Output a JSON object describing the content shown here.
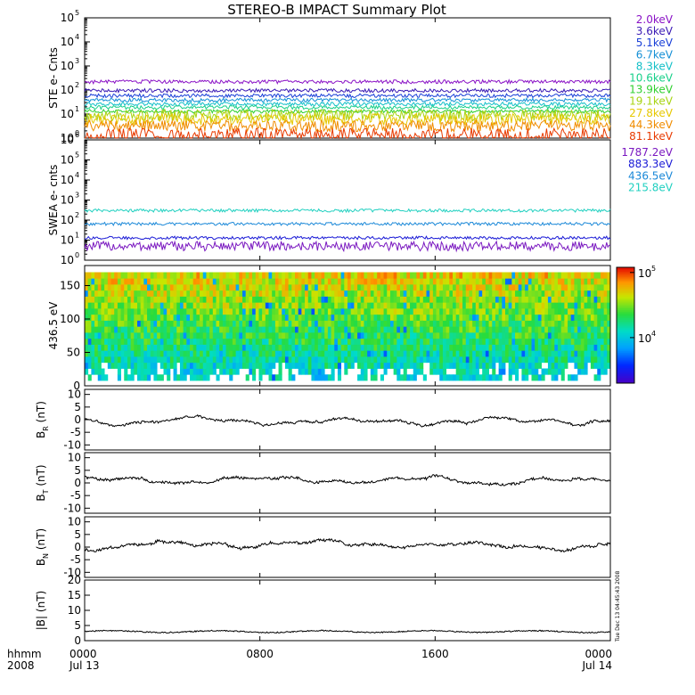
{
  "title": "STEREO-B IMPACT Summary Plot",
  "stamp": "Tue Dec 13 04:45:43 2008",
  "time_axis": {
    "corner_label_1": "hhmm",
    "corner_label_2": "2008",
    "ticks": [
      {
        "hhmm": "0000",
        "date": "Jul 13",
        "hour": 0
      },
      {
        "hhmm": "0800",
        "date": "",
        "hour": 8
      },
      {
        "hhmm": "1600",
        "date": "",
        "hour": 16
      },
      {
        "hhmm": "0000",
        "date": "Jul 14",
        "hour": 24
      }
    ],
    "range_hours": [
      0,
      24
    ]
  },
  "chart_data": [
    {
      "type": "line",
      "name": "ste",
      "ylabel": "STE e- Cnts",
      "yscale": "log",
      "ylim_exp": [
        0,
        5
      ],
      "tick_exponents": [
        0,
        1,
        2,
        3,
        4,
        5
      ],
      "series": [
        {
          "name": "2.0keV",
          "color": "#8a12c6",
          "level": 220
        },
        {
          "name": "3.6keV",
          "color": "#3a1ab4",
          "level": 95
        },
        {
          "name": "5.1keV",
          "color": "#1a40d8",
          "level": 58
        },
        {
          "name": "6.7keV",
          "color": "#1690d6",
          "level": 38
        },
        {
          "name": "8.3keV",
          "color": "#14c0c8",
          "level": 26
        },
        {
          "name": "10.6keV",
          "color": "#18d08a",
          "level": 19
        },
        {
          "name": "13.9keV",
          "color": "#30d030",
          "level": 13
        },
        {
          "name": "19.1keV",
          "color": "#a8d414",
          "level": 9
        },
        {
          "name": "27.8keV",
          "color": "#e6c800",
          "level": 6
        },
        {
          "name": "44.3keV",
          "color": "#f08c00",
          "level": 3.2
        },
        {
          "name": "81.1keV",
          "color": "#e83a00",
          "level": 1.5
        }
      ]
    },
    {
      "type": "line",
      "name": "swea",
      "ylabel": "SWEA e- cnts",
      "yscale": "log",
      "ylim_exp": [
        0,
        6
      ],
      "tick_exponents": [
        0,
        1,
        2,
        3,
        4,
        5,
        6
      ],
      "series": [
        {
          "name": "1787.2eV",
          "color": "#7a18c0",
          "level": 5
        },
        {
          "name": "883.3eV",
          "color": "#1a1ad6",
          "level": 13
        },
        {
          "name": "436.5eV",
          "color": "#1a88d8",
          "level": 65
        },
        {
          "name": "215.8eV",
          "color": "#20d0c0",
          "level": 300
        }
      ]
    },
    {
      "type": "heatmap",
      "name": "pad",
      "ylabel": "436.5 eV",
      "ylim": [
        0,
        180
      ],
      "yticks": [
        0,
        50,
        100,
        150
      ],
      "colorbar": {
        "scale": "log",
        "range": [
          2000,
          120000
        ],
        "ticks": [
          {
            "value": 10000,
            "label_base": "10",
            "label_exp": "4"
          },
          {
            "value": 100000,
            "label_base": "10",
            "label_exp": "5"
          }
        ]
      }
    },
    {
      "type": "line",
      "name": "br",
      "ylabel_main": "B",
      "ylabel_sub": "R",
      "ylabel_unit": "(nT)",
      "ylim": [
        -12,
        12
      ],
      "yticks": [
        -10,
        -5,
        0,
        5,
        10
      ],
      "mean": -0.4,
      "amp": 1.6,
      "seed": 3
    },
    {
      "type": "line",
      "name": "bt",
      "ylabel_main": "B",
      "ylabel_sub": "T",
      "ylabel_unit": "(nT)",
      "ylim": [
        -12,
        12
      ],
      "yticks": [
        -10,
        -5,
        0,
        5,
        10
      ],
      "mean": 1.2,
      "amp": 1.8,
      "seed": 7
    },
    {
      "type": "line",
      "name": "bn",
      "ylabel_main": "B",
      "ylabel_sub": "N",
      "ylabel_unit": "(nT)",
      "ylim": [
        -12,
        12
      ],
      "yticks": [
        -10,
        -5,
        0,
        5,
        10
      ],
      "mean": 0.6,
      "amp": 2.0,
      "seed": 11
    },
    {
      "type": "line",
      "name": "bmag",
      "ylabel_main": "|B|",
      "ylabel_sub": "",
      "ylabel_unit": "(nT)",
      "ylim": [
        0,
        20
      ],
      "yticks": [
        0,
        5,
        10,
        15,
        20
      ],
      "mean": 3.0,
      "amp": 0.4,
      "seed": 19
    }
  ]
}
